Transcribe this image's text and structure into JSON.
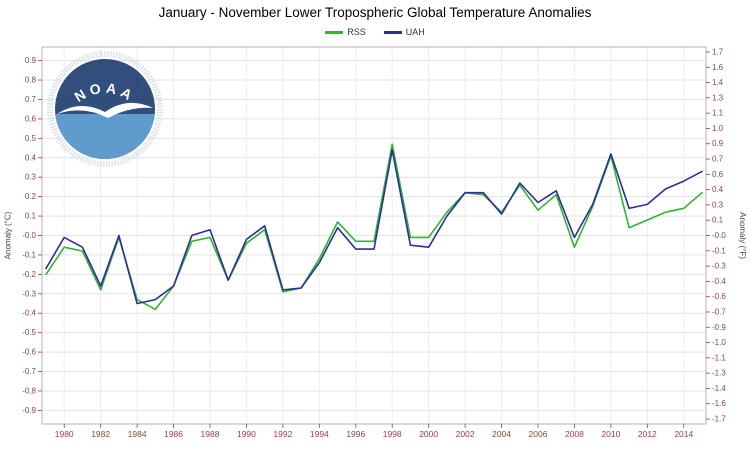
{
  "title": "January - November Lower Tropospheric Global Temperature Anomalies",
  "watermark": {
    "label": "NOAA"
  },
  "colors": {
    "axis_label": "#994040",
    "grid": "#e3e3e3",
    "grid_v": "#ececec",
    "border": "#b3b3b3",
    "title": "#000000",
    "legend_text": "#333333",
    "logo_dark_blue": "#16366b",
    "logo_light_blue": "#4a8fc7"
  },
  "chart_data": {
    "type": "line",
    "title": "January - November Lower Tropospheric Global Temperature Anomalies",
    "x": [
      1979,
      1980,
      1981,
      1982,
      1983,
      1984,
      1985,
      1986,
      1987,
      1988,
      1989,
      1990,
      1991,
      1992,
      1993,
      1994,
      1995,
      1996,
      1997,
      1998,
      1999,
      2000,
      2001,
      2002,
      2003,
      2004,
      2005,
      2006,
      2007,
      2008,
      2009,
      2010,
      2011,
      2012,
      2013,
      2014,
      2015
    ],
    "series": [
      {
        "name": "RSS",
        "color": "#2fb52f",
        "values": [
          -0.2,
          -0.06,
          -0.08,
          -0.28,
          -0.01,
          -0.33,
          -0.38,
          -0.26,
          -0.03,
          -0.01,
          -0.23,
          -0.04,
          0.03,
          -0.29,
          -0.27,
          -0.12,
          0.07,
          -0.03,
          -0.03,
          0.47,
          -0.01,
          -0.01,
          0.12,
          0.22,
          0.21,
          0.12,
          0.26,
          0.13,
          0.21,
          -0.06,
          0.15,
          0.41,
          0.04,
          0.08,
          0.12,
          0.14,
          0.22
        ]
      },
      {
        "name": "UAH",
        "color": "#2b2f9e",
        "values": [
          -0.17,
          -0.01,
          -0.06,
          -0.26,
          0.0,
          -0.35,
          -0.33,
          -0.26,
          0.0,
          0.03,
          -0.23,
          -0.02,
          0.05,
          -0.28,
          -0.27,
          -0.14,
          0.04,
          -0.07,
          -0.07,
          0.44,
          -0.05,
          -0.06,
          0.1,
          0.22,
          0.22,
          0.11,
          0.27,
          0.17,
          0.23,
          -0.01,
          0.16,
          0.42,
          0.14,
          0.16,
          0.24,
          0.28,
          0.33
        ]
      }
    ],
    "ylabel_left": "Anomaly (°C)",
    "ylabel_right": "Anomaly (°F)",
    "ylim": [
      -0.97,
      0.97
    ],
    "y_ticks_left": [
      "0.9",
      "0.8",
      "0.7",
      "0.6",
      "0.5",
      "0.4",
      "0.3",
      "0.2",
      "0.1",
      "-0.0",
      "-0.1",
      "-0.2",
      "-0.3",
      "-0.4",
      "-0.5",
      "-0.6",
      "-0.7",
      "-0.8",
      "-0.9"
    ],
    "y_ticks_right": [
      "1.7",
      "1.6",
      "1.4",
      "1.3",
      "1.1",
      "1.0",
      "0.9",
      "0.7",
      "0.6",
      "0.4",
      "0.3",
      "0.1",
      "-0.0",
      "-0.1",
      "-0.3",
      "-0.4",
      "-0.6",
      "-0.7",
      "-0.9",
      "-1.0",
      "-1.1",
      "-1.3",
      "-1.4",
      "-1.6",
      "-1.7"
    ],
    "x_ticks": [
      1980,
      1982,
      1984,
      1986,
      1988,
      1990,
      1992,
      1994,
      1996,
      1998,
      2000,
      2002,
      2004,
      2006,
      2008,
      2010,
      2012,
      2014
    ],
    "grid": true,
    "legend_position": "top-center"
  }
}
